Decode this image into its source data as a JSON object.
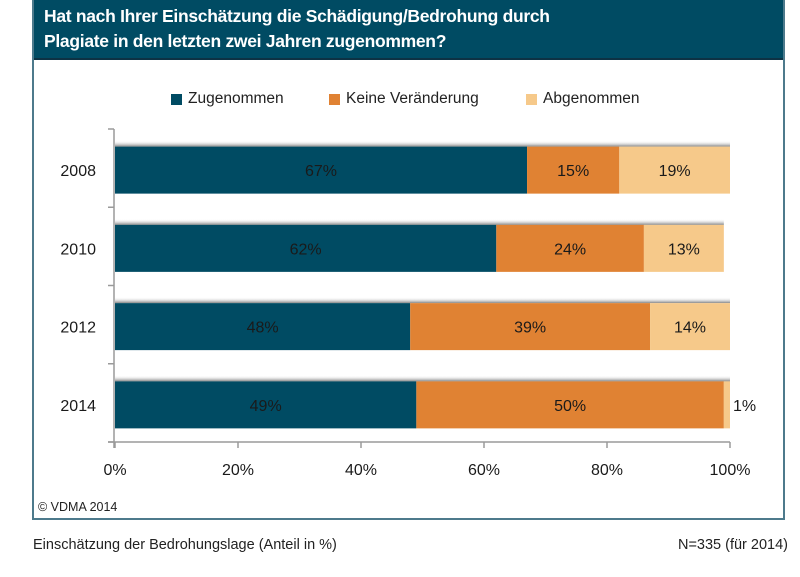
{
  "header": {
    "title_line1": "Hat nach Ihrer Einschätzung die Schädigung/Bedrohung durch",
    "title_line2": "Plagiate in den letzten zwei Jahren zugenommen?"
  },
  "colors": {
    "header_bg": "#004B63",
    "zugenommen": "#004B63",
    "keine_veraenderung": "#E08233",
    "abgenommen": "#F6C98A"
  },
  "chart_data": {
    "type": "bar",
    "orientation": "horizontal",
    "stacked": true,
    "title": "Hat nach Ihrer Einschätzung die Schädigung/Bedrohung durch Plagiate in den letzten zwei Jahren zugenommen?",
    "categories": [
      "2008",
      "2010",
      "2012",
      "2014"
    ],
    "series": [
      {
        "name": "Zugenommen",
        "color": "#004B63",
        "values": [
          67,
          62,
          48,
          49
        ],
        "labels": [
          "67%",
          "62%",
          "48%",
          "49%"
        ]
      },
      {
        "name": "Keine Veränderung",
        "color": "#E08233",
        "values": [
          15,
          24,
          39,
          50
        ],
        "labels": [
          "15%",
          "24%",
          "39%",
          "50%"
        ]
      },
      {
        "name": "Abgenommen",
        "color": "#F6C98A",
        "values": [
          19,
          13,
          14,
          1
        ],
        "labels": [
          "19%",
          "13%",
          "14%",
          "1%"
        ]
      }
    ],
    "xlim": [
      0,
      100
    ],
    "xticks": [
      "0%",
      "20%",
      "40%",
      "60%",
      "80%",
      "100%"
    ],
    "xlabel": "",
    "ylabel": "",
    "legend": "top",
    "grid": false
  },
  "copyright": "© VDMA 2014",
  "footer": {
    "caption": "Einschätzung der Bedrohungslage (Anteil in %)",
    "sample": "N=335 (für 2014)"
  }
}
